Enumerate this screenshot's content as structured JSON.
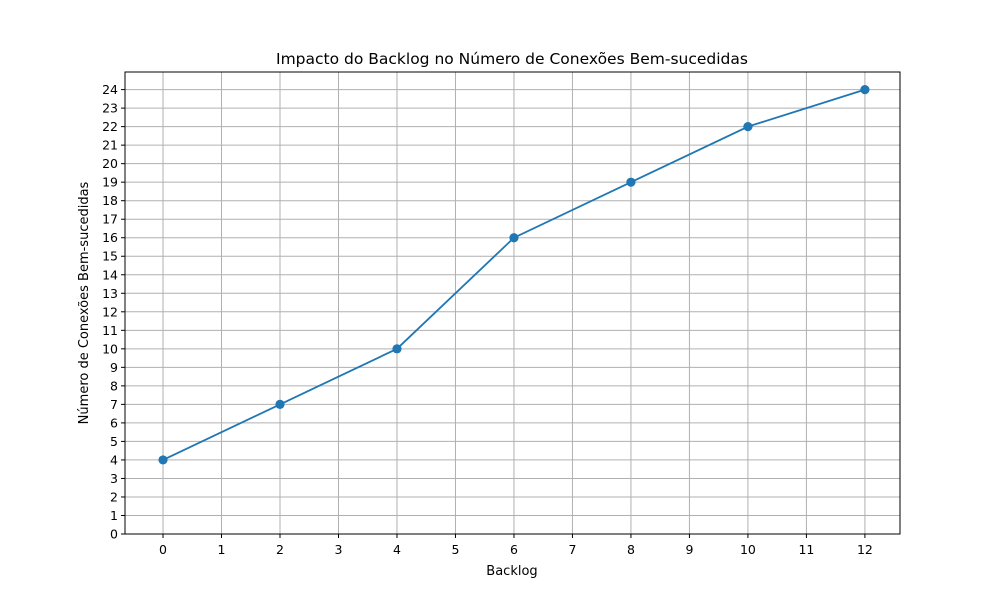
{
  "chart_data": {
    "type": "line",
    "title": "Impacto do Backlog no Número de Conexões Bem-sucedidas",
    "xlabel": "Backlog",
    "ylabel": "Número de Conexões Bem-sucedidas",
    "xlim": [
      -0.65,
      12.6
    ],
    "ylim": [
      0,
      24.95
    ],
    "xticks": [
      0,
      1,
      2,
      3,
      4,
      5,
      6,
      7,
      8,
      9,
      10,
      11,
      12
    ],
    "yticks": [
      0,
      1,
      2,
      3,
      4,
      5,
      6,
      7,
      8,
      9,
      10,
      11,
      12,
      13,
      14,
      15,
      16,
      17,
      18,
      19,
      20,
      21,
      22,
      23,
      24
    ],
    "grid": true,
    "series": [
      {
        "x": [
          0,
          2,
          4,
          6,
          8,
          10,
          12
        ],
        "y": [
          4,
          7,
          10,
          16,
          19,
          22,
          24
        ],
        "color": "#1f77b4",
        "marker": "circle"
      }
    ]
  }
}
